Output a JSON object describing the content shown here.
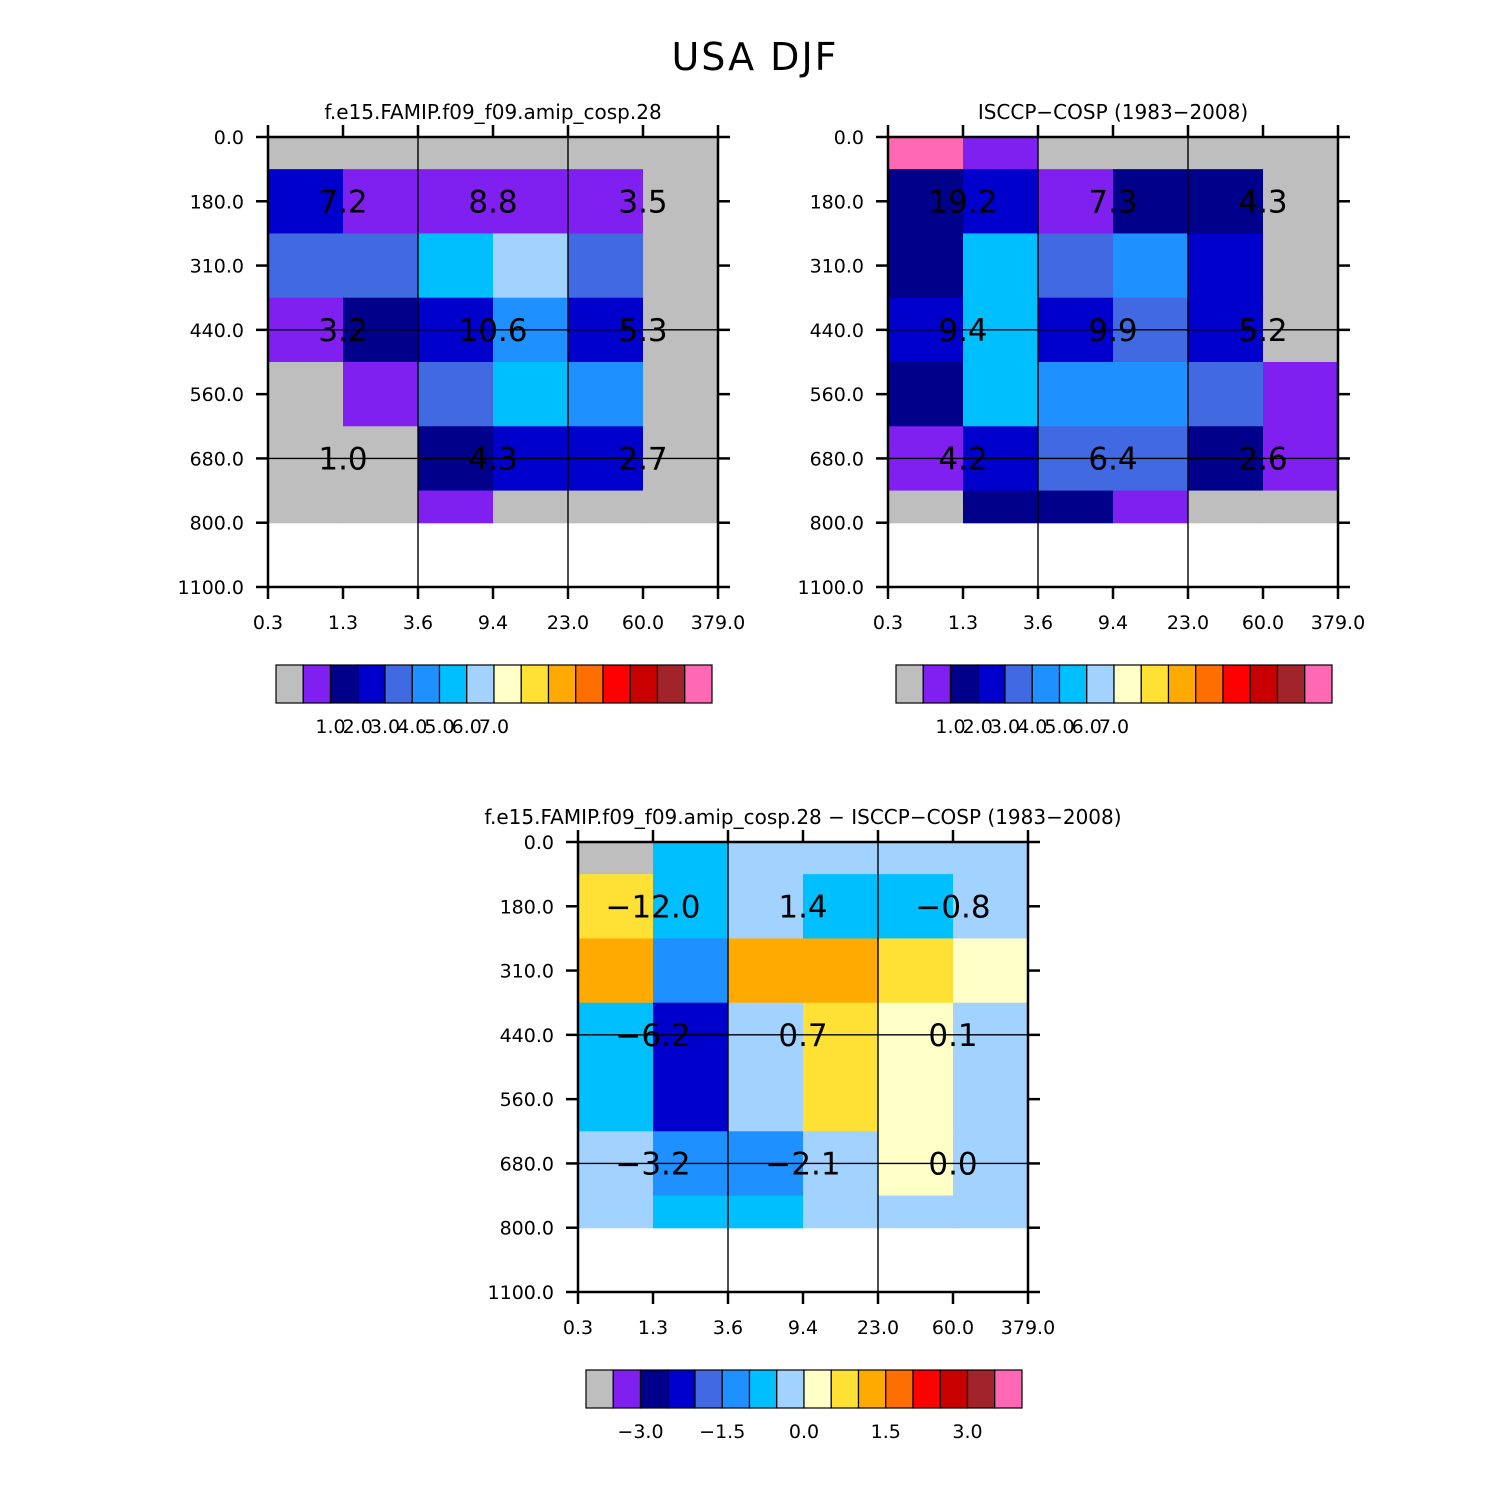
{
  "title": "USA DJF",
  "colors": {
    "missing": "#bebebe",
    "palette": [
      "#bebebe",
      "#8020f0",
      "#00008b",
      "#0000cd",
      "#4169e1",
      "#1e90ff",
      "#00bfff",
      "#a2d2ff",
      "#ffffc8",
      "#ffe135",
      "#ffaa00",
      "#ff6e00",
      "#ff0000",
      "#c80000",
      "#a0242a",
      "#ff69b4"
    ]
  },
  "chart_data": [
    {
      "type": "heatmap",
      "title": "f.e15.FAMIP.f09_f09.amip_cosp.28",
      "x_ticks": [
        "0.3",
        "1.3",
        "3.6",
        "9.4",
        "23.0",
        "60.0",
        "379.0"
      ],
      "y_ticks": [
        "0.0",
        "180.0",
        "310.0",
        "440.0",
        "560.0",
        "680.0",
        "800.0",
        "1100.0"
      ],
      "cells": [
        [
          0,
          0,
          0,
          0,
          0,
          0
        ],
        [
          3,
          1,
          1,
          1,
          1,
          0
        ],
        [
          4,
          4,
          6,
          7,
          4,
          0
        ],
        [
          1,
          2,
          3,
          5,
          3,
          0
        ],
        [
          0,
          1,
          4,
          6,
          5,
          0
        ],
        [
          0,
          0,
          2,
          3,
          3,
          0
        ],
        [
          0,
          0,
          1,
          0,
          0,
          0
        ]
      ],
      "cell_labels": [
        {
          "text": "7.2",
          "row": 1,
          "col": 0
        },
        {
          "text": "8.8",
          "row": 1,
          "col": 2
        },
        {
          "text": "3.5",
          "row": 1,
          "col": 4
        },
        {
          "text": "3.2",
          "row": 3,
          "col": 0
        },
        {
          "text": "10.6",
          "row": 3,
          "col": 2
        },
        {
          "text": "5.3",
          "row": 3,
          "col": 4
        },
        {
          "text": "1.0",
          "row": 5,
          "col": 0
        },
        {
          "text": "4.3",
          "row": 5,
          "col": 2
        },
        {
          "text": "2.7",
          "row": 5,
          "col": 4
        }
      ],
      "colorbar": {
        "labels": [
          "1.0",
          "2.0",
          "3.0",
          "4.0",
          "5.0",
          "6.0",
          "7.0"
        ],
        "label_start_index": 2
      }
    },
    {
      "type": "heatmap",
      "title": "ISCCP-COSP (1983-2008)",
      "x_ticks": [
        "0.3",
        "1.3",
        "3.6",
        "9.4",
        "23.0",
        "60.0",
        "379.0"
      ],
      "y_ticks": [
        "0.0",
        "180.0",
        "310.0",
        "440.0",
        "560.0",
        "680.0",
        "800.0",
        "1100.0"
      ],
      "cells": [
        [
          15,
          1,
          0,
          0,
          0,
          0
        ],
        [
          2,
          3,
          1,
          2,
          2,
          0
        ],
        [
          2,
          6,
          4,
          5,
          3,
          0
        ],
        [
          3,
          6,
          3,
          4,
          3,
          0
        ],
        [
          2,
          6,
          5,
          5,
          4,
          1
        ],
        [
          1,
          3,
          4,
          4,
          2,
          1
        ],
        [
          0,
          2,
          2,
          1,
          0,
          0
        ]
      ],
      "cell_labels": [
        {
          "text": "19.2",
          "row": 1,
          "col": 0
        },
        {
          "text": "7.3",
          "row": 1,
          "col": 2
        },
        {
          "text": "4.3",
          "row": 1,
          "col": 4
        },
        {
          "text": "9.4",
          "row": 3,
          "col": 0
        },
        {
          "text": "9.9",
          "row": 3,
          "col": 2
        },
        {
          "text": "5.2",
          "row": 3,
          "col": 4
        },
        {
          "text": "4.2",
          "row": 5,
          "col": 0
        },
        {
          "text": "6.4",
          "row": 5,
          "col": 2
        },
        {
          "text": "2.6",
          "row": 5,
          "col": 4
        }
      ],
      "colorbar": {
        "labels": [
          "1.0",
          "2.0",
          "3.0",
          "4.0",
          "5.0",
          "6.0",
          "7.0"
        ],
        "label_start_index": 2
      }
    },
    {
      "type": "heatmap",
      "title": "f.e15.FAMIP.f09_f09.amip_cosp.28 - ISCCP-COSP (1983-2008)",
      "x_ticks": [
        "0.3",
        "1.3",
        "3.6",
        "9.4",
        "23.0",
        "60.0",
        "379.0"
      ],
      "y_ticks": [
        "0.0",
        "180.0",
        "310.0",
        "440.0",
        "560.0",
        "680.0",
        "800.0",
        "1100.0"
      ],
      "cells": [
        [
          0,
          6,
          7,
          7,
          7,
          7
        ],
        [
          9,
          6,
          7,
          6,
          6,
          7
        ],
        [
          10,
          5,
          10,
          10,
          9,
          8
        ],
        [
          6,
          3,
          7,
          9,
          8,
          7
        ],
        [
          6,
          3,
          7,
          9,
          8,
          7
        ],
        [
          7,
          5,
          5,
          7,
          8,
          7
        ],
        [
          7,
          6,
          6,
          7,
          7,
          7
        ]
      ],
      "cell_labels": [
        {
          "text": "-12.0",
          "row": 1,
          "col": 0
        },
        {
          "text": "1.4",
          "row": 1,
          "col": 2
        },
        {
          "text": "-0.8",
          "row": 1,
          "col": 4
        },
        {
          "text": "-6.2",
          "row": 3,
          "col": 0
        },
        {
          "text": "0.7",
          "row": 3,
          "col": 2
        },
        {
          "text": "0.1",
          "row": 3,
          "col": 4
        },
        {
          "text": "-3.2",
          "row": 5,
          "col": 0
        },
        {
          "text": "-2.1",
          "row": 5,
          "col": 2
        },
        {
          "text": "0.0",
          "row": 5,
          "col": 4
        }
      ],
      "colorbar": {
        "labels": [
          "-3.0",
          "-1.5",
          "0.0",
          "1.5",
          "3.0"
        ],
        "label_start_index": 2,
        "label_step": 3
      }
    }
  ]
}
